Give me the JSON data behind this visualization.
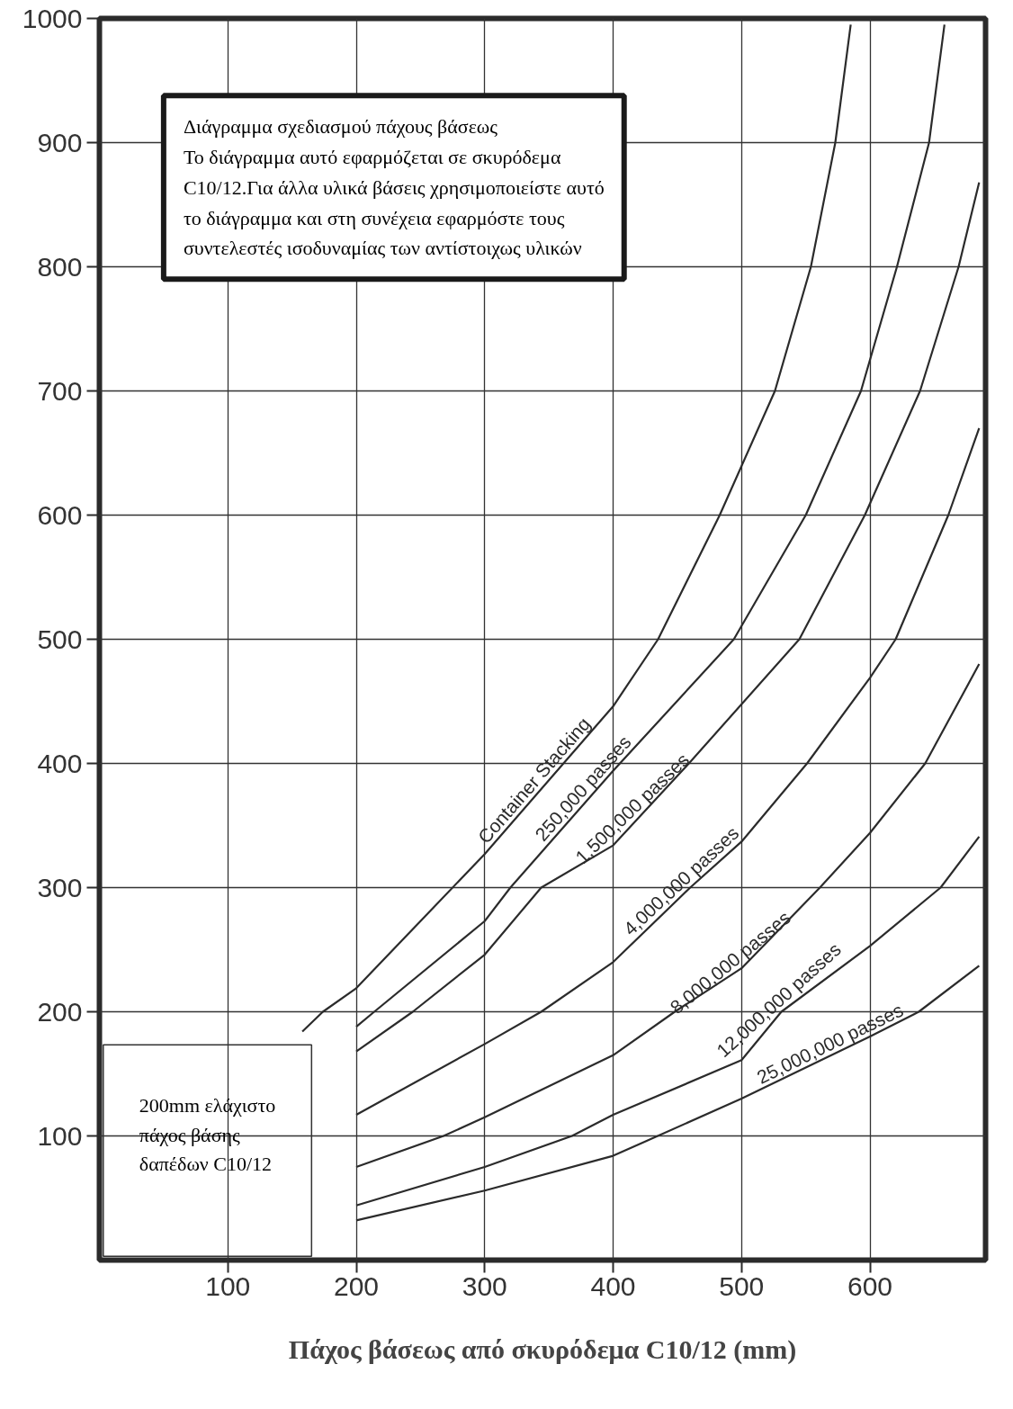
{
  "chart_data": {
    "type": "line",
    "xlabel": "Πάχος βάσεως από σκυρόδεμα C10/12 (mm)",
    "xlim": [
      0,
      690
    ],
    "ylim": [
      0,
      1000
    ],
    "xticks": [
      100,
      200,
      300,
      400,
      500,
      600
    ],
    "yticks": [
      100,
      200,
      300,
      400,
      500,
      600,
      700,
      800,
      900,
      1000
    ],
    "grid": true,
    "marker": "none",
    "line_style": "solid",
    "series": [
      {
        "name": "Container Stacking",
        "color": "#2b2b2b",
        "x": [
          158,
          174,
          200,
          300,
          400,
          435,
          483,
          526,
          554,
          573,
          585
        ],
        "values": [
          184,
          200,
          219,
          327,
          446,
          500,
          600,
          700,
          800,
          900,
          995
        ]
      },
      {
        "name": "250,000 passes",
        "color": "#2b2b2b",
        "x": [
          200,
          214,
          300,
          320,
          399,
          494,
          550,
          593,
          621,
          646,
          658
        ],
        "values": [
          188,
          200,
          273,
          300,
          393,
          500,
          600,
          700,
          800,
          900,
          995
        ]
      },
      {
        "name": "1,500,000 passes",
        "color": "#2b2b2b",
        "x": [
          200,
          244,
          300,
          344,
          400,
          459,
          545,
          596,
          639,
          669,
          685
        ],
        "values": [
          168,
          200,
          246,
          300,
          334,
          400,
          500,
          600,
          700,
          800,
          868
        ]
      },
      {
        "name": "4,000,000 passes",
        "color": "#2b2b2b",
        "x": [
          200,
          300,
          344,
          400,
          460,
          500,
          551,
          600,
          620,
          661,
          685
        ],
        "values": [
          117,
          174,
          200,
          240,
          300,
          337,
          400,
          469,
          500,
          600,
          670
        ]
      },
      {
        "name": "8,000,000 passes",
        "color": "#2b2b2b",
        "x": [
          200,
          268,
          300,
          400,
          448,
          500,
          561,
          600,
          643,
          685
        ],
        "values": [
          75,
          100,
          115,
          165,
          200,
          235,
          300,
          344,
          400,
          480
        ]
      },
      {
        "name": "12,000,000 passes",
        "color": "#2b2b2b",
        "x": [
          200,
          300,
          368,
          400,
          500,
          531,
          600,
          655,
          685
        ],
        "values": [
          44,
          75,
          100,
          117,
          161,
          200,
          253,
          300,
          341
        ]
      },
      {
        "name": "25,000,000 passes",
        "color": "#2b2b2b",
        "x": [
          200,
          300,
          400,
          500,
          600,
          638,
          685
        ],
        "values": [
          32,
          56,
          84,
          130,
          180,
          200,
          237
        ]
      }
    ],
    "annotations": [
      "Διάγραμμα σχεδιασμού πάχους βάσεως\nΤο διάγραμμα αυτό εφαρμόζεται σε σκυρόδεμα\nC10/12.Για άλλα υλικά βάσεις χρησιμοποιείστε αυτό\nτο διάγραμμα και στη συνέχεια εφαρμόστε τους\nσυντελεστές ισοδυναμίας των αντίστοιχως υλικών",
      "200mm ελάχιστο\nπάχος βάσης\nδαπέδων C10/12"
    ]
  }
}
